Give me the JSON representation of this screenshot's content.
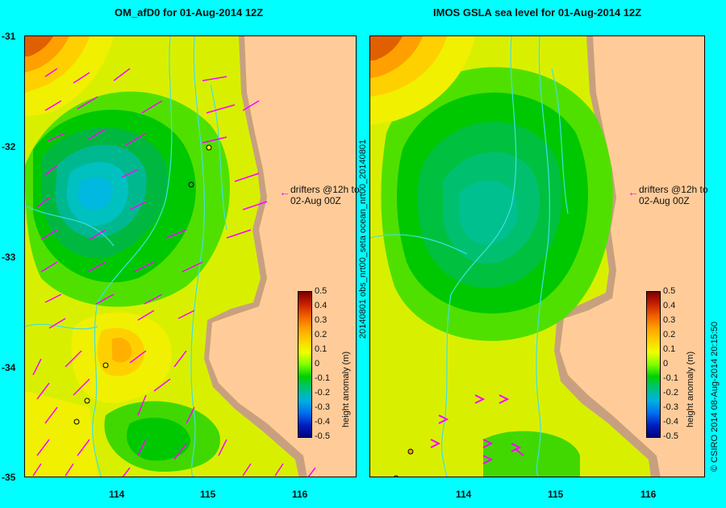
{
  "left_panel": {
    "title": "OM_afD0 for 01-Aug-2014 12Z",
    "annotation_line1": "drifters @12h to",
    "annotation_line2": "02-Aug 00Z",
    "colorbar_title": "height anomaly (m)"
  },
  "right_panel": {
    "title": "IMOS GSLA sea level  for 01-Aug-2014 12Z",
    "annotation_line1": "drifters @12h to",
    "annotation_line2": "02-Aug 00Z",
    "colorbar_title": "height anomaly (m)",
    "side_label": "20140801 obs_nrt00_seta    ocean_nrt00_20140801",
    "credit": "© CSIRO 2014   08-Aug-2014 20:15:50"
  },
  "y_ticks": [
    "-31",
    "-32",
    "-33",
    "-34",
    "-35"
  ],
  "x_ticks": [
    "114",
    "115",
    "116"
  ],
  "colorbar_ticks": [
    "0.5",
    "0.4",
    "0.3",
    "0.2",
    "0.1",
    "0",
    "-0.1",
    "-0.2",
    "-0.3",
    "-0.4",
    "-0.5"
  ],
  "colors": {
    "land": "#ffcc99",
    "coast": "#c8a080",
    "background": "#00ffff",
    "arrows": "#ff00ff",
    "rivers": "#40e0e0"
  }
}
